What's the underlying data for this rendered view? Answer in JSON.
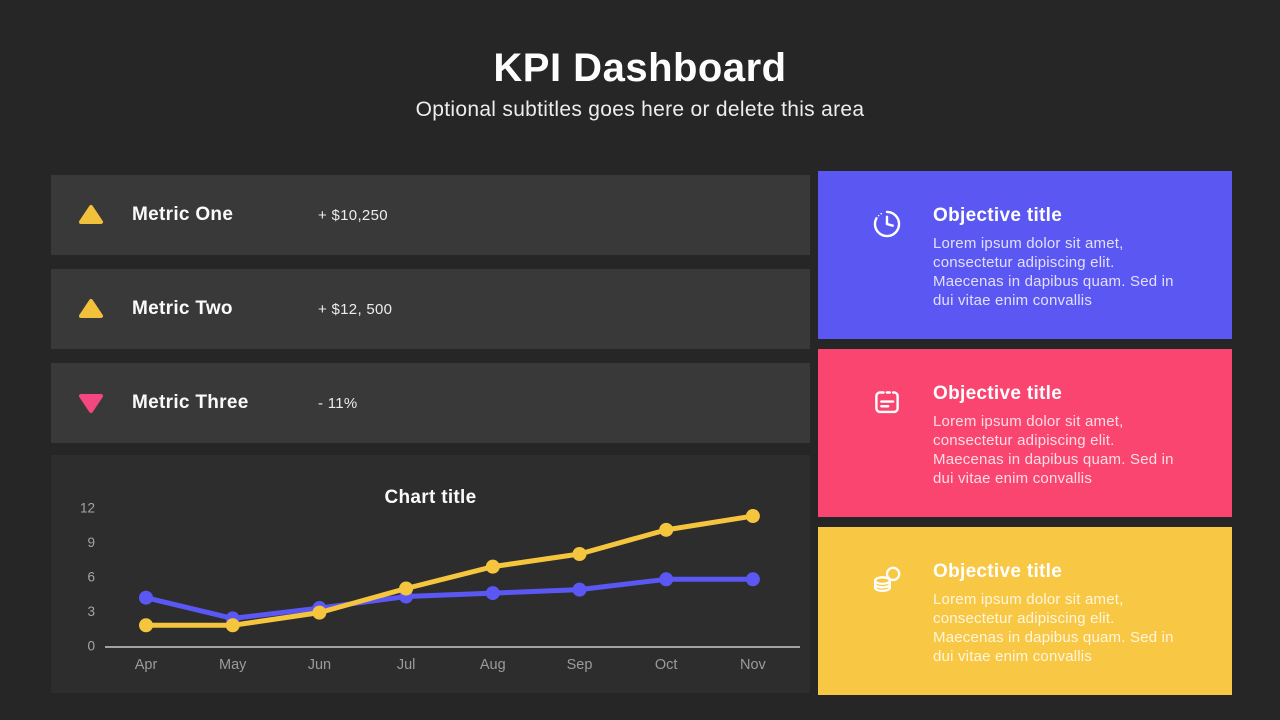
{
  "slide": {
    "title": "KPI Dashboard",
    "subtitle": "Optional subtitles goes here or delete this area"
  },
  "metrics": {
    "items": [
      {
        "label": "Metric One",
        "value": "+ $10,250",
        "direction": "up"
      },
      {
        "label": "Metric Two",
        "value": "+ $12, 500",
        "direction": "up"
      },
      {
        "label": "Metric Three",
        "value": "- 11%",
        "direction": "down"
      }
    ]
  },
  "chart_data": {
    "type": "line",
    "title": "Chart title",
    "categories": [
      "Apr",
      "May",
      "Jun",
      "Jul",
      "Aug",
      "Sep",
      "Oct",
      "Nov"
    ],
    "series": [
      {
        "name": "series-purple",
        "color": "#5B57F3",
        "values": [
          4.2,
          2.4,
          3.3,
          4.3,
          4.6,
          4.9,
          5.8,
          5.8
        ]
      },
      {
        "name": "series-yellow",
        "color": "#F5C53D",
        "values": [
          1.8,
          1.8,
          2.9,
          5.0,
          6.9,
          8.0,
          10.1,
          11.3
        ]
      }
    ],
    "yticks": [
      0,
      3,
      6,
      9,
      12
    ],
    "ylim": [
      0,
      12
    ],
    "xlabel": "",
    "ylabel": "",
    "grid": false,
    "legend": "none"
  },
  "objectives": {
    "items": [
      {
        "title": "Objective title",
        "body": "Lorem ipsum dolor sit amet, consectetur adipiscing elit. Maecenas in dapibus quam. Sed in dui vitae enim convallis",
        "icon": "clock-icon",
        "color": "#5B57F3"
      },
      {
        "title": "Objective title",
        "body": "Lorem ipsum dolor sit amet, consectetur adipiscing elit. Maecenas in dapibus quam. Sed in dui vitae enim convallis",
        "icon": "notes-icon",
        "color": "#F94570"
      },
      {
        "title": "Objective title",
        "body": "Lorem ipsum dolor sit amet, consectetur adipiscing elit. Maecenas in dapibus quam. Sed in dui vitae enim convallis",
        "icon": "coins-icon",
        "color": "#F8C845"
      }
    ]
  },
  "colors": {
    "background": "#262626",
    "metric_card": "#393939",
    "chart_panel": "#2D2D2D",
    "accent_purple": "#5B57F3",
    "accent_pink_card": "#F94570",
    "accent_yellow_card": "#F8C845",
    "trend_up_yellow": "#F2C13C",
    "trend_down_pink": "#F4477F",
    "axis_text": "#A5A5A5",
    "month_text": "#9B9B9B",
    "axis_line": "#C9C9C9"
  }
}
